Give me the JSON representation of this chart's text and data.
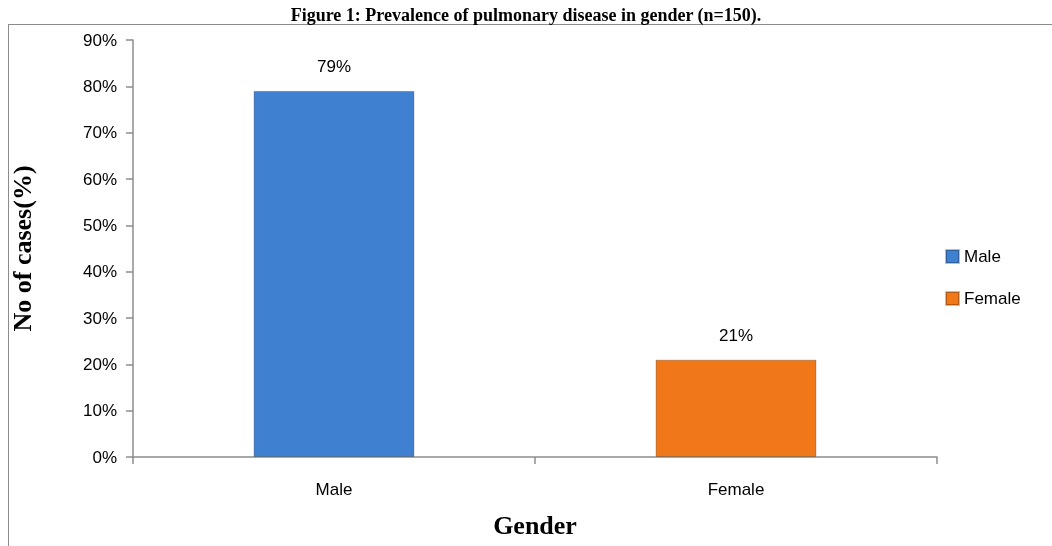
{
  "chart_data": {
    "type": "bar",
    "title": "Figure 1: Prevalence of pulmonary disease in gender (n=150).",
    "xlabel": "Gender",
    "ylabel": "No of cases(%)",
    "categories": [
      "Male",
      "Female"
    ],
    "series": [
      {
        "name": "Male",
        "color": "#4080d0",
        "values": [
          79,
          null
        ],
        "value_labels": [
          "79%",
          null
        ]
      },
      {
        "name": "Female",
        "color": "#f07818",
        "values": [
          null,
          21
        ],
        "value_labels": [
          null,
          "21%"
        ]
      }
    ],
    "ylim": [
      0,
      90
    ],
    "yticks": [
      {
        "value": 0,
        "label": "0%"
      },
      {
        "value": 10,
        "label": "10%"
      },
      {
        "value": 20,
        "label": "20%"
      },
      {
        "value": 30,
        "label": "30%"
      },
      {
        "value": 40,
        "label": "40%"
      },
      {
        "value": 50,
        "label": "50%"
      },
      {
        "value": 60,
        "label": "60%"
      },
      {
        "value": 70,
        "label": "70%"
      },
      {
        "value": 80,
        "label": "80%"
      },
      {
        "value": 90,
        "label": "90%"
      }
    ],
    "grid": false,
    "legend": "right"
  }
}
